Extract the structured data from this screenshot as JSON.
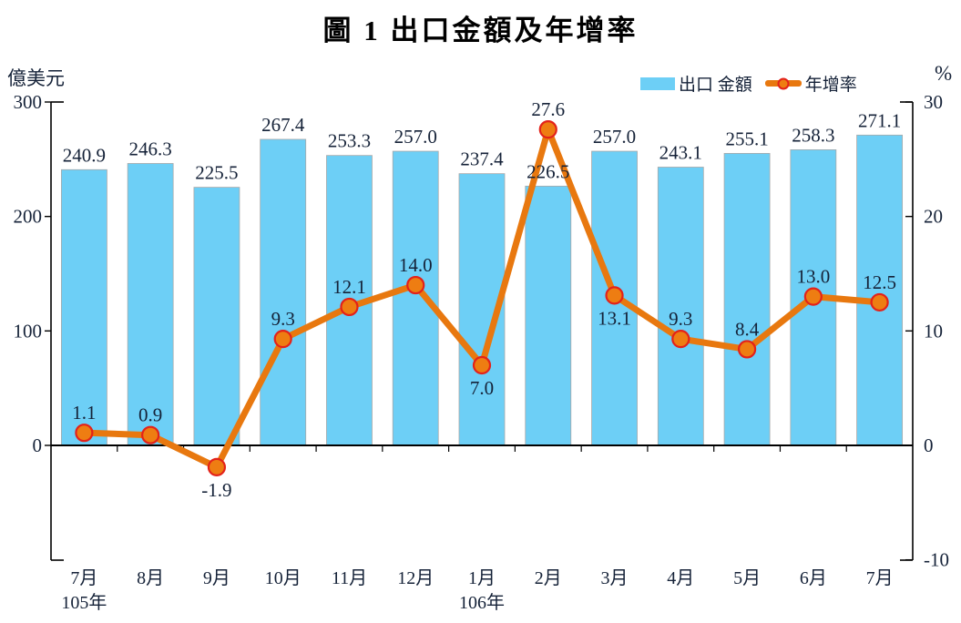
{
  "title": "圖 1  出口金額及年增率",
  "legend": {
    "items": [
      {
        "label": "出口 金額",
        "type": "bar"
      },
      {
        "label": "年增率",
        "type": "line"
      }
    ]
  },
  "chart_data": {
    "type": "bar+line combo",
    "title": "圖 1  出口金額及年增率",
    "categories": [
      "7月",
      "8月",
      "9月",
      "10月",
      "11月",
      "12月",
      "1月",
      "2月",
      "3月",
      "4月",
      "5月",
      "6月",
      "7月"
    ],
    "x_year_labels": [
      {
        "text": "105年",
        "index": 0
      },
      {
        "text": "106年",
        "index": 6
      }
    ],
    "left_axis": {
      "label": "億美元",
      "ticks": [
        300,
        200,
        100,
        0
      ],
      "range": [
        -100,
        300
      ]
    },
    "right_axis": {
      "label": "%",
      "ticks": [
        30,
        20,
        10,
        0,
        -10
      ],
      "range": [
        -10,
        30
      ]
    },
    "grid": false,
    "legend_position": "top-right",
    "series": [
      {
        "name": "出口金額",
        "type": "bar",
        "axis": "left",
        "values": [
          240.9,
          246.3,
          225.5,
          267.4,
          253.3,
          257.0,
          237.4,
          226.5,
          257.0,
          243.1,
          255.1,
          258.3,
          271.1
        ],
        "labels": [
          "240.9",
          "246.3",
          "225.5",
          "267.4",
          "253.3",
          "257.0",
          "237.4",
          "226.5",
          "257.0",
          "243.1",
          "255.1",
          "258.3",
          "271.1"
        ],
        "color": "#6DCFF6",
        "border_color": "#A8A8A8"
      },
      {
        "name": "年增率",
        "type": "line",
        "axis": "right",
        "values": [
          1.1,
          0.9,
          -1.9,
          9.3,
          12.1,
          14.0,
          7.0,
          27.6,
          13.1,
          9.3,
          8.4,
          13.0,
          12.5
        ],
        "labels": [
          "1.1",
          "0.9",
          "-1.9",
          "9.3",
          "12.1",
          "14.0",
          "7.0",
          "27.6",
          "13.1",
          "9.3",
          "8.4",
          "13.0",
          "12.5"
        ],
        "label_position": [
          "above",
          "above",
          "below",
          "above",
          "above",
          "above",
          "below",
          "above",
          "below",
          "above",
          "above",
          "above",
          "above"
        ],
        "color": "#E8780F",
        "marker_fill": "#EE7D12",
        "marker_edge": "#E3221A"
      }
    ]
  },
  "colors": {
    "bar_fill": "#6DCFF6",
    "line_orange": "#E8780F",
    "marker_edge_red": "#E3221A",
    "axis_black": "#000000",
    "label_navy": "#152238"
  }
}
